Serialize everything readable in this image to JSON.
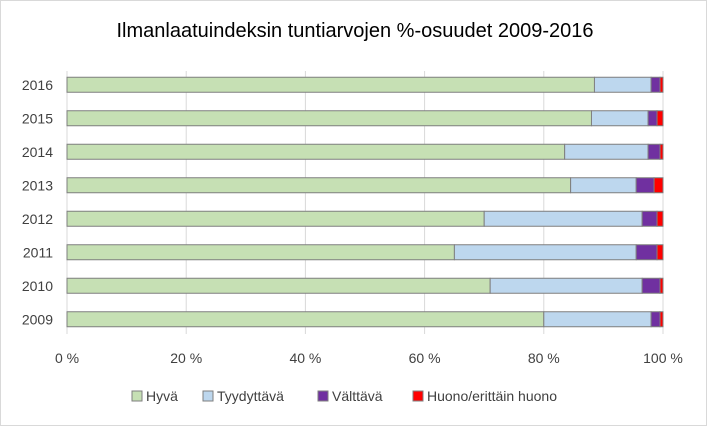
{
  "chart_data": {
    "type": "bar",
    "orientation": "horizontal",
    "stacked": "percent",
    "title": "Ilmanlaatuindeksin tuntiarvojen %-osuudet 2009-2016",
    "categories": [
      "2016",
      "2015",
      "2014",
      "2013",
      "2012",
      "2011",
      "2010",
      "2009"
    ],
    "xlim": [
      0,
      100
    ],
    "x_ticks": [
      "0 %",
      "20 %",
      "40 %",
      "60 %",
      "80 %",
      "100 %"
    ],
    "grid": true,
    "legend_position": "bottom",
    "series": [
      {
        "name": "Hyvä",
        "color": "#c6e0b4",
        "values": [
          88.5,
          88.0,
          83.5,
          84.5,
          70.0,
          65.0,
          71.0,
          80.0
        ]
      },
      {
        "name": "Tyydyttävä",
        "color": "#bdd7ee",
        "values": [
          9.5,
          9.5,
          14.0,
          11.0,
          26.5,
          30.5,
          25.5,
          18.0
        ]
      },
      {
        "name": "Välttävä",
        "color": "#7030a0",
        "values": [
          1.5,
          1.5,
          2.0,
          3.0,
          2.5,
          3.5,
          3.0,
          1.5
        ]
      },
      {
        "name": "Huono/erittäin huono",
        "color": "#ff0000",
        "values": [
          0.5,
          1.0,
          0.5,
          1.5,
          1.0,
          1.0,
          0.5,
          0.5
        ]
      }
    ]
  }
}
